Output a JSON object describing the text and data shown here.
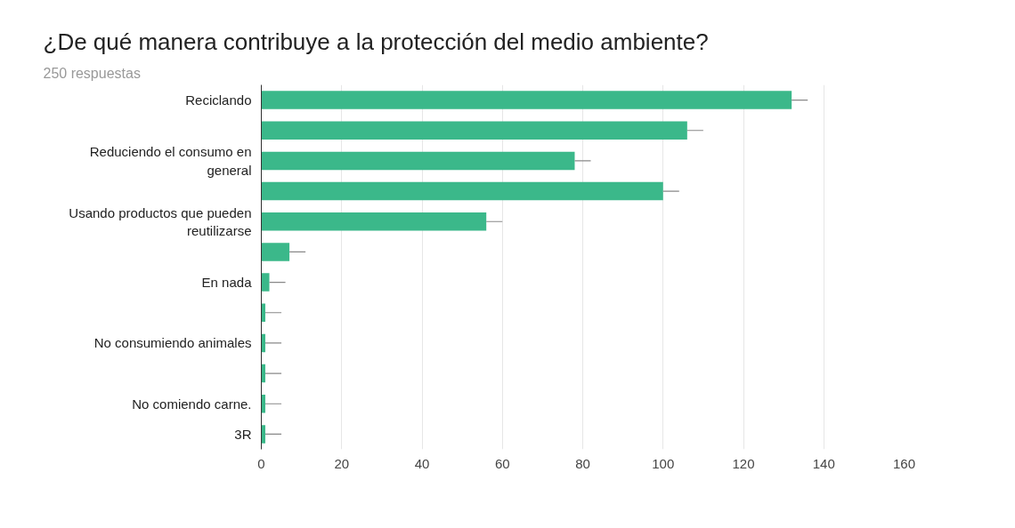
{
  "chart_data": {
    "type": "bar",
    "orientation": "horizontal",
    "title": "¿De qué manera contribuye a la protección del medio ambiente?",
    "subtitle": "250 respuestas",
    "categories": [
      "Reciclando",
      null,
      "Reduciendo el consumo en general",
      null,
      "Usando productos que pueden reutilizarse",
      null,
      "En nada",
      null,
      "No consumiendo animales",
      null,
      "No comiendo carne.",
      "3R"
    ],
    "values": [
      132,
      106,
      78,
      100,
      56,
      7,
      2,
      1,
      1,
      1,
      1,
      1
    ],
    "errors": [
      [
        132,
        136
      ],
      [
        106,
        110
      ],
      [
        78,
        82
      ],
      [
        100,
        104
      ],
      [
        56,
        60
      ],
      [
        7,
        11
      ],
      [
        2,
        6
      ],
      [
        1,
        5
      ],
      [
        1,
        5
      ],
      [
        1,
        5
      ],
      [
        1,
        5
      ],
      [
        1,
        5
      ]
    ],
    "color": "#3bb88a",
    "xlim": [
      0,
      160
    ],
    "xticks": [
      0,
      20,
      40,
      60,
      80,
      100,
      120,
      140,
      160
    ],
    "grid": "x"
  }
}
